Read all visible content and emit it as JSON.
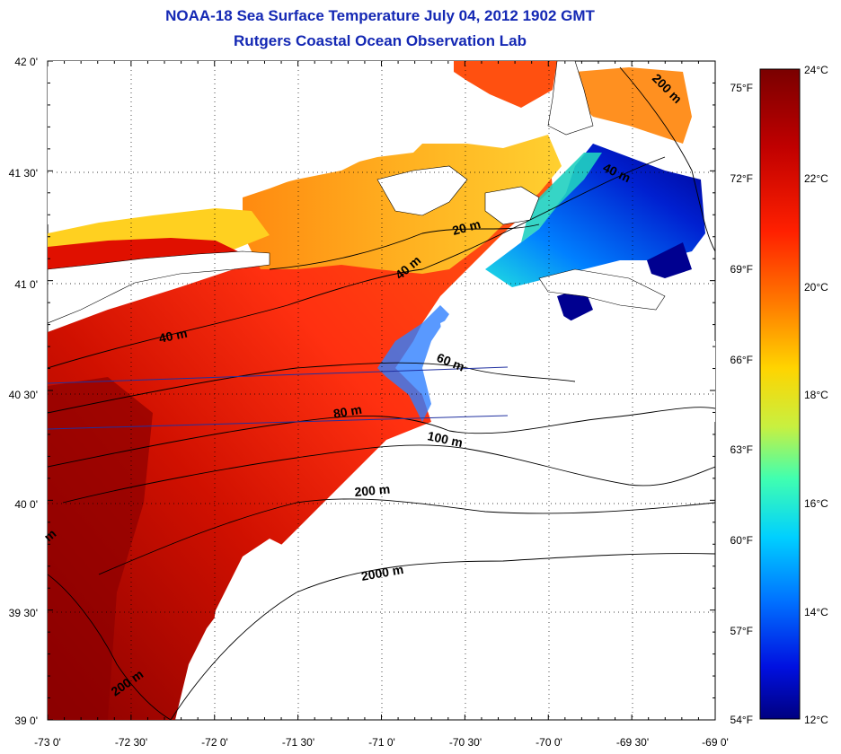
{
  "title": {
    "line1": "NOAA-18 Sea Surface Temperature July 04, 2012 1902 GMT",
    "line2": "Rutgers Coastal Ocean Observation Lab"
  },
  "map": {
    "lon_ticks": [
      "-73 0'",
      "-72 30'",
      "-72 0'",
      "-71 30'",
      "-71 0'",
      "-70 30'",
      "-70 0'",
      "-69 30'",
      "-69 0'"
    ],
    "lat_ticks": [
      "42 0'",
      "41 30'",
      "41 0'",
      "40 30'",
      "40 0'",
      "39 30'",
      "39 0'"
    ],
    "contour_labels": [
      "20 m",
      "40 m",
      "40 m",
      "40 m",
      "60 m",
      "80 m",
      "100 m",
      "200 m",
      "2000 m",
      "200 m",
      "200 m",
      "m"
    ]
  },
  "colorbar": {
    "celsius": [
      "24°C",
      "22°C",
      "20°C",
      "18°C",
      "16°C",
      "14°C",
      "12°C"
    ],
    "fahrenheit": [
      "75°F",
      "72°F",
      "69°F",
      "66°F",
      "63°F",
      "60°F",
      "57°F",
      "54°F"
    ],
    "colors": [
      "#7a0000",
      "#c80000",
      "#ff2a00",
      "#ff8000",
      "#ffd000",
      "#e8f000",
      "#80ff80",
      "#00e0e0",
      "#00a0ff",
      "#0040ff",
      "#0000c0",
      "#000080"
    ]
  }
}
